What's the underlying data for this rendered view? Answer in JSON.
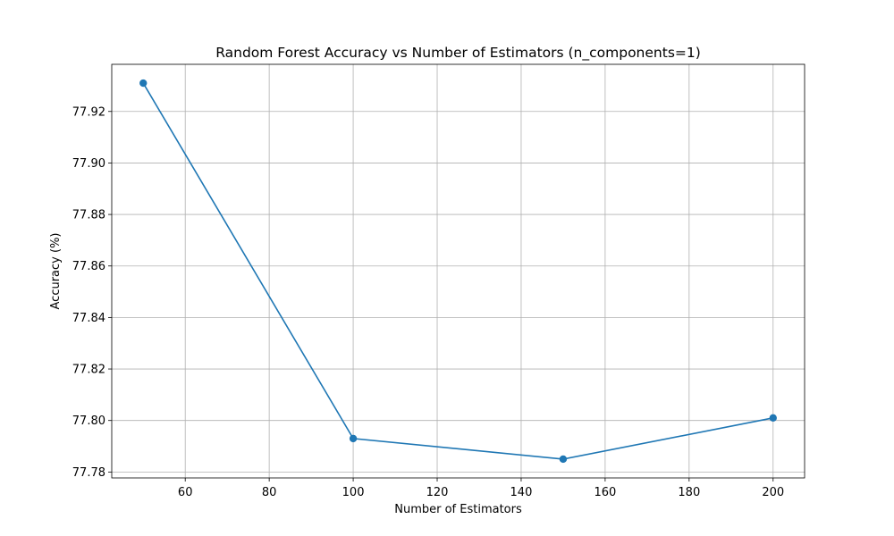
{
  "chart_data": {
    "type": "line",
    "title": "Random Forest Accuracy vs Number of Estimators (n_components=1)",
    "xlabel": "Number of Estimators",
    "ylabel": "Accuracy (%)",
    "x": [
      50,
      100,
      150,
      200
    ],
    "series": [
      {
        "values": [
          77.931,
          77.793,
          77.785,
          77.801
        ],
        "color": "#1f77b4",
        "marker": "circle"
      }
    ],
    "xlim": [
      42.5,
      207.5
    ],
    "ylim": [
      77.7777,
      77.9383
    ],
    "xticks": [
      60,
      80,
      100,
      120,
      140,
      160,
      180,
      200
    ],
    "xtick_labels": [
      "60",
      "80",
      "100",
      "120",
      "140",
      "160",
      "180",
      "200"
    ],
    "yticks": [
      77.78,
      77.8,
      77.82,
      77.84,
      77.86,
      77.88,
      77.9,
      77.92
    ],
    "ytick_labels": [
      "77.78",
      "77.80",
      "77.82",
      "77.84",
      "77.86",
      "77.88",
      "77.90",
      "77.92"
    ],
    "grid": true,
    "legend": false
  }
}
